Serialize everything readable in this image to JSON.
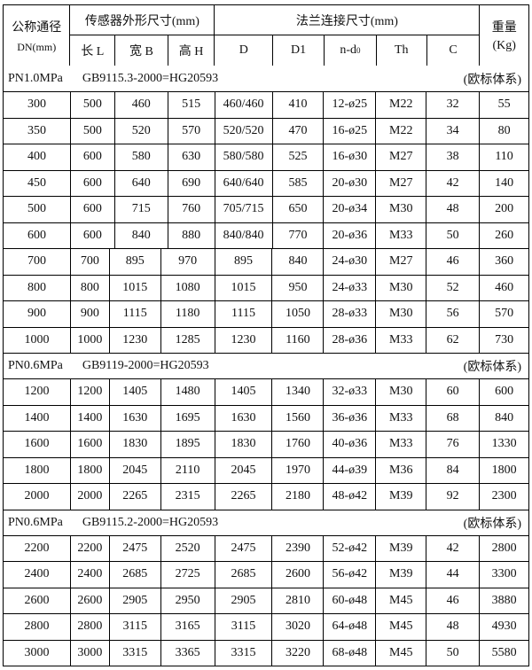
{
  "header": {
    "dn_label": "公称通径",
    "dn_unit": "DN(mm)",
    "sensor_group": "传感器外形尺寸(mm)",
    "flange_group": "法兰连接尺寸(mm)",
    "weight_label": "重量",
    "weight_unit": "(Kg)",
    "cols": [
      "长 L",
      "宽 B",
      "高 H",
      "D",
      "D1",
      "n-d",
      "Th",
      "C"
    ],
    "nd_sub": "0"
  },
  "sections": [
    {
      "pressure": "PN1.0MPa",
      "standard": "GB9115.3-2000=HG20593",
      "system": "(欧标体系)",
      "rows": [
        [
          "300",
          "500",
          "460",
          "515",
          "460/460",
          "410",
          "12-ø25",
          "M22",
          "32",
          "55"
        ],
        [
          "350",
          "500",
          "520",
          "570",
          "520/520",
          "470",
          "16-ø25",
          "M22",
          "34",
          "80"
        ],
        [
          "400",
          "600",
          "580",
          "630",
          "580/580",
          "525",
          "16-ø30",
          "M27",
          "38",
          "110"
        ],
        [
          "450",
          "600",
          "640",
          "690",
          "640/640",
          "585",
          "20-ø30",
          "M27",
          "42",
          "140"
        ],
        [
          "500",
          "600",
          "715",
          "760",
          "705/715",
          "650",
          "20-ø34",
          "M30",
          "48",
          "200"
        ],
        [
          "600",
          "600",
          "840",
          "880",
          "840/840",
          "770",
          "20-ø36",
          "M33",
          "50",
          "260"
        ],
        [
          "700",
          "700",
          "895",
          "970",
          "895",
          "840",
          "24-ø30",
          "M27",
          "46",
          "360"
        ],
        [
          "800",
          "800",
          "1015",
          "1080",
          "1015",
          "950",
          "24-ø33",
          "M30",
          "52",
          "460"
        ],
        [
          "900",
          "900",
          "1115",
          "1180",
          "1115",
          "1050",
          "28-ø33",
          "M30",
          "56",
          "570"
        ],
        [
          "1000",
          "1000",
          "1230",
          "1285",
          "1230",
          "1160",
          "28-ø36",
          "M33",
          "62",
          "730"
        ]
      ]
    },
    {
      "pressure": "PN0.6MPa",
      "standard": "GB9119-2000=HG20593",
      "system": "(欧标体系)",
      "rows": [
        [
          "1200",
          "1200",
          "1405",
          "1480",
          "1405",
          "1340",
          "32-ø33",
          "M30",
          "60",
          "600"
        ],
        [
          "1400",
          "1400",
          "1630",
          "1695",
          "1630",
          "1560",
          "36-ø36",
          "M33",
          "68",
          "840"
        ],
        [
          "1600",
          "1600",
          "1830",
          "1895",
          "1830",
          "1760",
          "40-ø36",
          "M33",
          "76",
          "1330"
        ],
        [
          "1800",
          "1800",
          "2045",
          "2110",
          "2045",
          "1970",
          "44-ø39",
          "M36",
          "84",
          "1800"
        ],
        [
          "2000",
          "2000",
          "2265",
          "2315",
          "2265",
          "2180",
          "48-ø42",
          "M39",
          "92",
          "2300"
        ]
      ]
    },
    {
      "pressure": "PN0.6MPa",
      "standard": "GB9115.2-2000=HG20593",
      "system": "(欧标体系)",
      "rows": [
        [
          "2200",
          "2200",
          "2475",
          "2520",
          "2475",
          "2390",
          "52-ø42",
          "M39",
          "42",
          "2800"
        ],
        [
          "2400",
          "2400",
          "2685",
          "2725",
          "2685",
          "2600",
          "56-ø42",
          "M39",
          "44",
          "3300"
        ],
        [
          "2600",
          "2600",
          "2905",
          "2950",
          "2905",
          "2810",
          "60-ø48",
          "M45",
          "46",
          "3880"
        ],
        [
          "2800",
          "2800",
          "3115",
          "3165",
          "3115",
          "3020",
          "64-ø48",
          "M45",
          "48",
          "4930"
        ],
        [
          "3000",
          "3000",
          "3315",
          "3365",
          "3315",
          "3220",
          "68-ø48",
          "M45",
          "50",
          "5580"
        ]
      ]
    }
  ]
}
